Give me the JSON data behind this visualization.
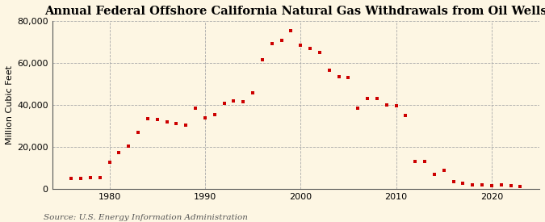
{
  "title": "Annual Federal Offshore California Natural Gas Withdrawals from Oil Wells",
  "ylabel": "Million Cubic Feet",
  "source": "Source: U.S. Energy Information Administration",
  "background_color": "#fdf6e3",
  "marker_color": "#cc0000",
  "years": [
    1976,
    1977,
    1978,
    1979,
    1980,
    1981,
    1982,
    1983,
    1984,
    1985,
    1986,
    1987,
    1988,
    1989,
    1990,
    1991,
    1992,
    1993,
    1994,
    1995,
    1996,
    1997,
    1998,
    1999,
    2000,
    2001,
    2002,
    2003,
    2004,
    2005,
    2006,
    2007,
    2008,
    2009,
    2010,
    2011,
    2012,
    2013,
    2014,
    2015,
    2016,
    2017,
    2018,
    2019,
    2020,
    2021,
    2022,
    2023
  ],
  "values": [
    5000,
    5000,
    5200,
    5500,
    12500,
    17500,
    20500,
    27000,
    33500,
    33000,
    32000,
    31000,
    30500,
    38500,
    34000,
    35500,
    41000,
    42000,
    41500,
    46000,
    61500,
    69500,
    71000,
    75500,
    68500,
    67000,
    65000,
    56500,
    53500,
    53000,
    38500,
    43000,
    43000,
    40000,
    39500,
    35000,
    13000,
    13000,
    7000,
    9000,
    3500,
    2500,
    2000,
    2000,
    1500,
    1800,
    1500,
    1200
  ],
  "xlim": [
    1974,
    2025
  ],
  "ylim": [
    0,
    80000
  ],
  "yticks": [
    0,
    20000,
    40000,
    60000,
    80000
  ],
  "xticks": [
    1980,
    1990,
    2000,
    2010,
    2020
  ],
  "grid_color": "#aaaaaa",
  "title_fontsize": 10.5,
  "label_fontsize": 8,
  "tick_fontsize": 8,
  "source_fontsize": 7.5,
  "marker_size": 12
}
